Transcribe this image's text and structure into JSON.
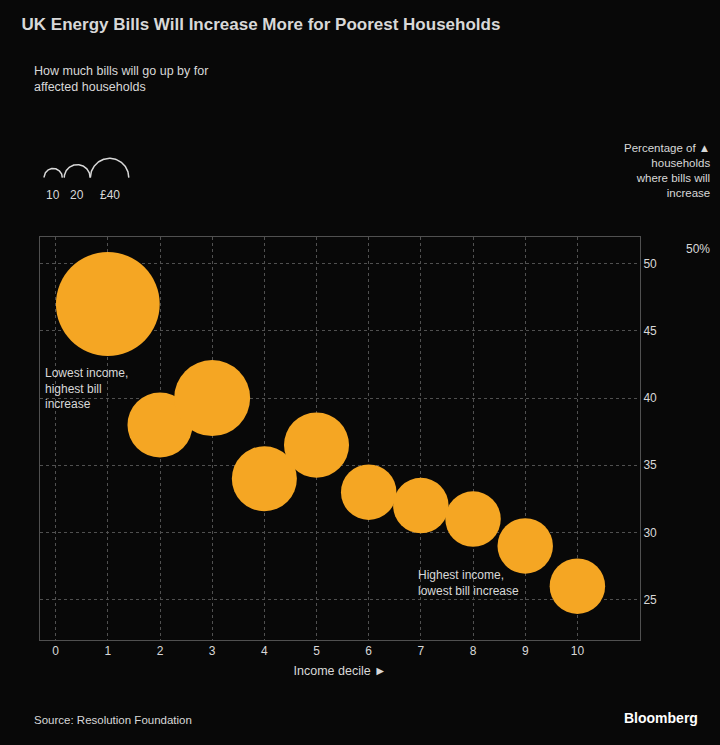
{
  "chart_data": {
    "type": "scatter",
    "title": "UK Energy Bills Will Increase More for Poorest Households",
    "subtitle": "How much bills will go up by for\naffected households",
    "x_label": "Income decile ►",
    "y_label": "Percentage of ▲\nhouseholds\nwhere bills will\nincrease",
    "y_unit_label": "50%",
    "x": [
      1,
      2,
      3,
      4,
      5,
      6,
      7,
      8,
      9,
      10
    ],
    "values": [
      47.0,
      38.0,
      40.0,
      34.0,
      36.5,
      33.0,
      32.0,
      31.0,
      29.0,
      26.0
    ],
    "sizes": [
      2800,
      1100,
      1500,
      1100,
      1100,
      800,
      800,
      800,
      800,
      800
    ],
    "color": "#f5a623",
    "xlim": [
      -0.3,
      11.2
    ],
    "ylim": [
      22,
      52
    ],
    "xticks": [
      0,
      1,
      2,
      3,
      4,
      5,
      6,
      7,
      8,
      9,
      10
    ],
    "yticks": [
      25,
      30,
      35,
      40,
      45,
      50
    ],
    "grid": true,
    "annotations": [
      "Lowest income,\nhighest bill\nincrease",
      "Highest income,\nlowest bill increase"
    ],
    "size_legend_labels": [
      "10",
      "20",
      "£40"
    ],
    "source": "Source: Resolution Foundation",
    "credit": "Bloomberg",
    "background_color": "#080808",
    "text_color": "#d8d8d8",
    "credit_color": "white"
  }
}
